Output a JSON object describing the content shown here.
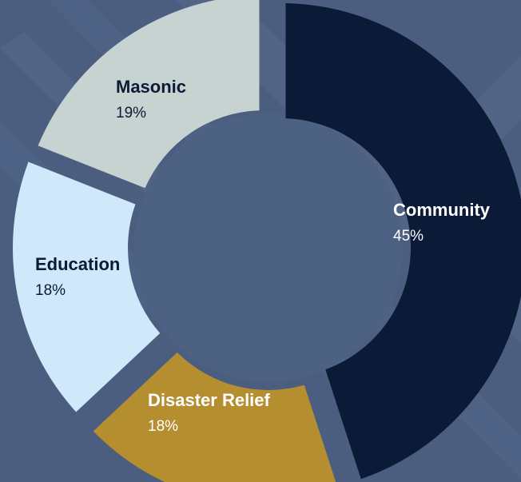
{
  "chart_data": {
    "type": "pie",
    "style": "donut",
    "legend": "none",
    "slices": [
      {
        "label": "Community",
        "value": 45,
        "value_label": "45%",
        "color": "#0b1a36",
        "label_color": "#ffffff"
      },
      {
        "label": "Disaster Relief",
        "value": 18,
        "value_label": "18%",
        "color": "#b58e30",
        "label_color": "#ffffff"
      },
      {
        "label": "Education",
        "value": 18,
        "value_label": "18%",
        "color": "#cfe9fb",
        "label_color": "#0b1a36"
      },
      {
        "label": "Masonic",
        "value": 19,
        "value_label": "19%",
        "color": "#c7d3d1",
        "label_color": "#0b1a36"
      }
    ]
  },
  "colors": {
    "background": "#4b5e80",
    "background_stripe": "#566a8b",
    "hole": "#4d6182"
  }
}
